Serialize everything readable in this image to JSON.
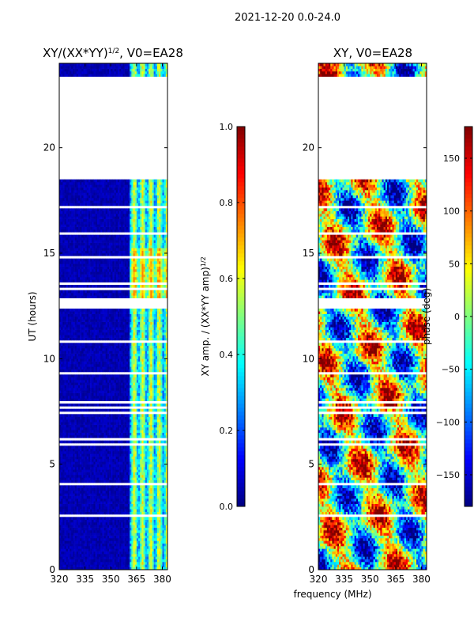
{
  "figure": {
    "suptitle": "2021-12-20 0.0-24.0",
    "xlabel": "frequency (MHz)"
  },
  "chart_data": [
    {
      "type": "heatmap",
      "title": "XY/(XX*YY)",
      "title_sup": "1/2",
      "title_suffix": ", V0=EA28",
      "xlabel": "",
      "ylabel": "UT (hours)",
      "xlim": [
        320,
        383
      ],
      "ylim": [
        0,
        24
      ],
      "xticks": [
        "320",
        "335",
        "350",
        "365",
        "380"
      ],
      "xtick_values": [
        320,
        335,
        350,
        365,
        380
      ],
      "yticks": [
        "0",
        "5",
        "10",
        "15",
        "20"
      ],
      "ytick_values": [
        0,
        5,
        10,
        15,
        20
      ],
      "colorbar": {
        "label": "XY amp. / (XX*YY amp)",
        "label_sup": "1/2",
        "range": [
          0.0,
          1.0
        ],
        "ticks": [
          "0.0",
          "0.2",
          "0.4",
          "0.6",
          "0.8",
          "1.0"
        ],
        "tick_values": [
          0.0,
          0.2,
          0.4,
          0.6,
          0.8,
          1.0
        ],
        "colormap": "jet"
      },
      "blank_ut_ranges": [
        [
          18.5,
          23.3
        ]
      ],
      "bright_band_mhz": [
        [
          361,
          383
        ]
      ]
    },
    {
      "type": "heatmap",
      "title": "XY, V0=EA28",
      "xlabel": "",
      "ylabel": "",
      "xlim": [
        320,
        383
      ],
      "ylim": [
        0,
        24
      ],
      "xticks": [
        "320",
        "335",
        "350",
        "365",
        "380"
      ],
      "xtick_values": [
        320,
        335,
        350,
        365,
        380
      ],
      "yticks": [
        "0",
        "5",
        "10",
        "15",
        "20"
      ],
      "ytick_values": [
        0,
        5,
        10,
        15,
        20
      ],
      "colorbar": {
        "label": "phase (deg)",
        "range": [
          -180,
          180
        ],
        "ticks": [
          "−150",
          "−100",
          "−50",
          "0",
          "50",
          "100",
          "150"
        ],
        "tick_values": [
          -150,
          -100,
          -50,
          0,
          50,
          100,
          150
        ],
        "colormap": "jet"
      },
      "blank_ut_ranges": [
        [
          18.5,
          23.3
        ]
      ]
    }
  ]
}
